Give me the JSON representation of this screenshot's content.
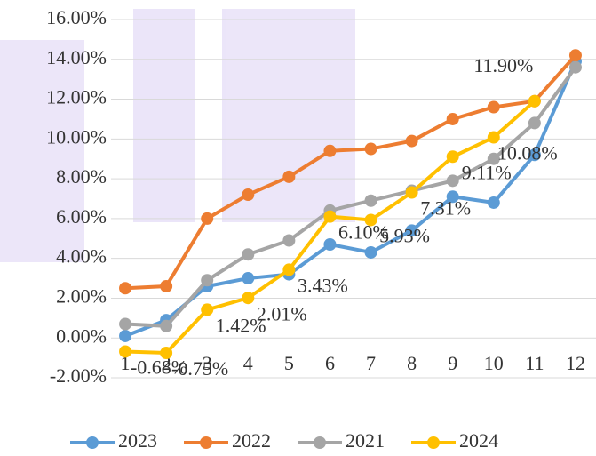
{
  "chart_data": {
    "type": "line",
    "categories": [
      "1",
      "2",
      "3",
      "4",
      "5",
      "6",
      "7",
      "8",
      "9",
      "10",
      "11",
      "12"
    ],
    "series": [
      {
        "name": "2023",
        "color": "#5b9bd5",
        "values": [
          0.1,
          0.9,
          2.6,
          3.0,
          3.2,
          4.7,
          4.3,
          5.4,
          7.1,
          6.8,
          9.2,
          13.9
        ]
      },
      {
        "name": "2022",
        "color": "#ed7d31",
        "values": [
          2.5,
          2.6,
          6.0,
          7.2,
          8.1,
          9.4,
          9.5,
          9.9,
          11.0,
          11.6,
          11.9,
          14.2
        ]
      },
      {
        "name": "2021",
        "color": "#a5a5a5",
        "values": [
          0.7,
          0.6,
          2.9,
          4.2,
          4.9,
          6.4,
          6.9,
          7.4,
          7.9,
          9.0,
          10.8,
          13.6
        ]
      },
      {
        "name": "2024",
        "color": "#ffc000",
        "values": [
          -0.68,
          -0.75,
          1.42,
          2.01,
          3.43,
          6.1,
          5.93,
          7.31,
          9.11,
          10.08,
          11.9,
          null
        ],
        "value_labels": [
          "-0.68%",
          "-0.75%",
          "1.42%",
          "2.01%",
          "3.43%",
          "6.10%",
          "5.93%",
          "7.31%",
          "9.11%",
          "10.08%",
          "11.90%",
          null
        ]
      }
    ],
    "ylim": [
      -2,
      16
    ],
    "yticks": [
      {
        "value": -2,
        "label": "-2.00%"
      },
      {
        "value": 0,
        "label": "0.00%"
      },
      {
        "value": 2,
        "label": "2.00%"
      },
      {
        "value": 4,
        "label": "4.00%"
      },
      {
        "value": 6,
        "label": "6.00%"
      },
      {
        "value": 8,
        "label": "8.00%"
      },
      {
        "value": 10,
        "label": "10.00%"
      },
      {
        "value": 12,
        "label": "12.00%"
      },
      {
        "value": 14,
        "label": "14.00%"
      },
      {
        "value": 16,
        "label": "16.00%"
      }
    ],
    "grid": true,
    "legend": "bottom"
  }
}
